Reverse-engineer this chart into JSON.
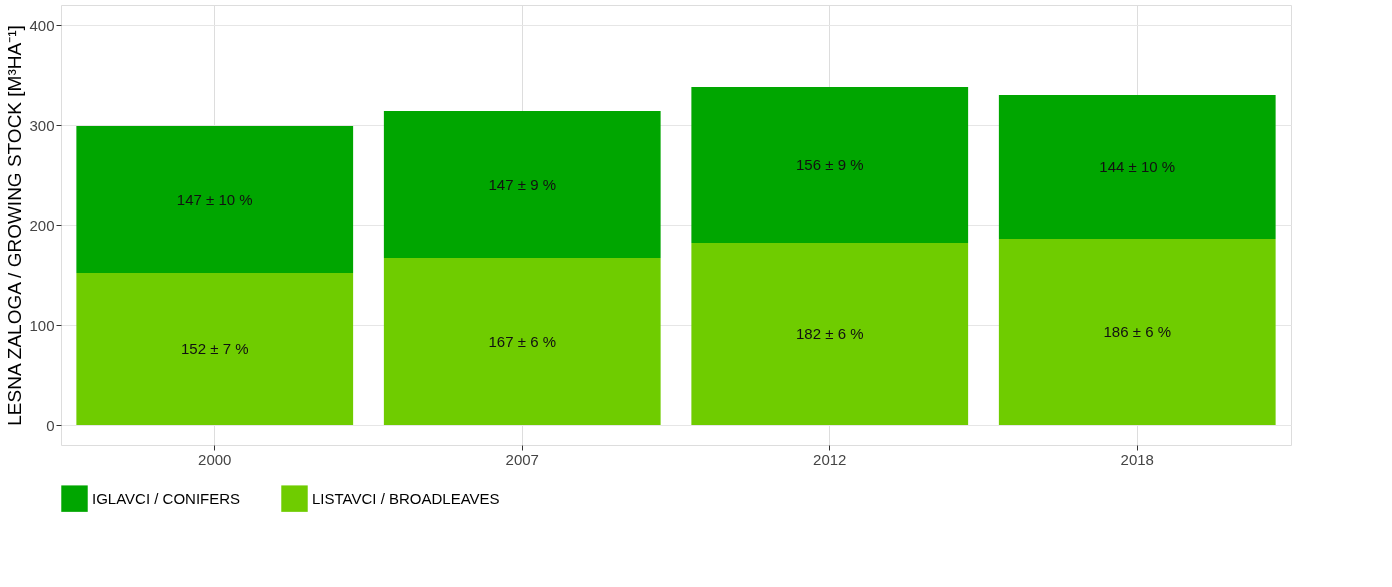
{
  "chart_data": {
    "type": "bar",
    "stacked": true,
    "ylabel": "LESNA ZALOGA / GROWING STOCK [M³HA⁻¹]",
    "categories": [
      "2000",
      "2007",
      "2012",
      "2018"
    ],
    "series": [
      {
        "name": "LISTAVCI / BROADLEAVES",
        "color": "#6fcc00",
        "values": [
          152,
          167,
          182,
          186
        ],
        "value_labels": [
          "152 ± 7 %",
          "167 ± 6 %",
          "182 ± 6 %",
          "186 ± 6 %"
        ]
      },
      {
        "name": "IGLAVCI / CONIFERS",
        "color": "#00a600",
        "values": [
          147,
          147,
          156,
          144
        ],
        "value_labels": [
          "147 ± 10 %",
          "147 ± 9 %",
          "156 ± 9 %",
          "144 ± 10 %"
        ]
      }
    ],
    "ylim": [
      -20,
      420
    ],
    "yticks": [
      0,
      100,
      200,
      300,
      400
    ],
    "grid": true,
    "legend": "bottom"
  }
}
